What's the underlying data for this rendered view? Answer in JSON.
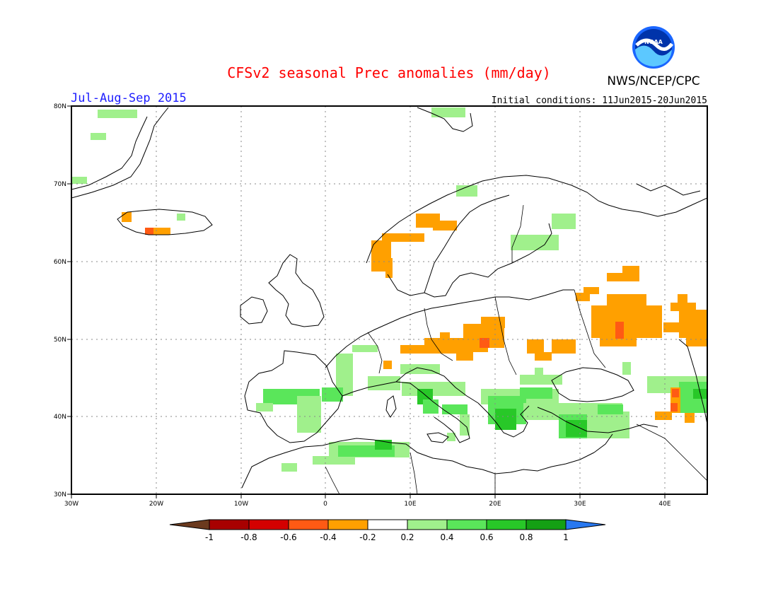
{
  "header": {
    "title": "CFSv2 seasonal Prec anomalies (mm/day)",
    "season": "Jul-Aug-Sep 2015",
    "initial_conditions": "Initial conditions: 11Jun2015-20Jun2015",
    "agency": "NWS/NCEP/CPC",
    "logo_text": "NOAA"
  },
  "axes": {
    "lon_labels": [
      "30W",
      "20W",
      "10W",
      "0",
      "10E",
      "20E",
      "30E",
      "40E"
    ],
    "lat_labels": [
      "30N",
      "40N",
      "50N",
      "60N",
      "70N",
      "80N"
    ]
  },
  "colorbar": {
    "labels": [
      "-1",
      "-0.8",
      "-0.6",
      "-0.4",
      "-0.2",
      "0.2",
      "0.4",
      "0.6",
      "0.8",
      "1"
    ],
    "colors": [
      "#6b3a1e",
      "#a80000",
      "#d40000",
      "#ff5a14",
      "#ffa000",
      "#ffffff",
      "#a0f08c",
      "#5ae65a",
      "#28c828",
      "#14a014",
      "#2878f0"
    ]
  },
  "colors": {
    "title": "#ff0000",
    "season": "#1e1eff",
    "land_outline": "#000000",
    "grid": "#888888"
  }
}
